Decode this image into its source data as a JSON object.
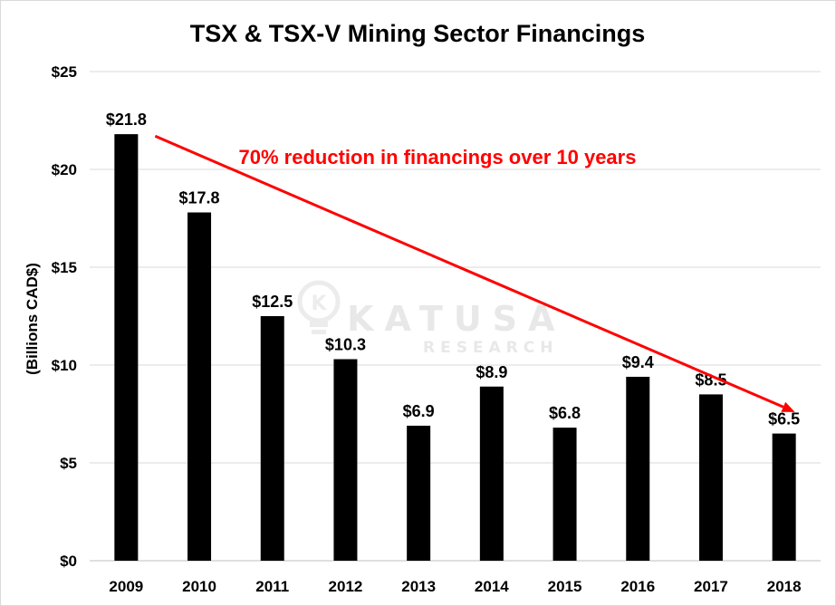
{
  "chart_data": {
    "type": "bar",
    "title": "TSX & TSX-V Mining Sector Financings",
    "xlabel": "",
    "ylabel": "(Billions CAD$)",
    "categories": [
      "2009",
      "2010",
      "2011",
      "2012",
      "2013",
      "2014",
      "2015",
      "2016",
      "2017",
      "2018"
    ],
    "values": [
      21.8,
      17.8,
      12.5,
      10.3,
      6.9,
      8.9,
      6.8,
      9.4,
      8.5,
      6.5
    ],
    "data_labels": [
      "$21.8",
      "$17.8",
      "$12.5",
      "$10.3",
      "$6.9",
      "$8.9",
      "$6.8",
      "$9.4",
      "$8.5",
      "$6.5"
    ],
    "ylim": [
      0,
      25
    ],
    "yticks": [
      0,
      5,
      10,
      15,
      20,
      25
    ],
    "ytick_labels": [
      "$0",
      "$5",
      "$10",
      "$15",
      "$20",
      "$25"
    ],
    "grid": true,
    "bar_color": "#000000",
    "annotation": {
      "text": "70% reduction in financings over 10 years",
      "color": "#ff0000",
      "arrow_from": {
        "category": "2009",
        "value": 21.7
      },
      "arrow_to": {
        "category": "2018",
        "value": 7.6
      }
    },
    "watermark": {
      "line1": "KATUSA",
      "line2": "RESEARCH",
      "color": "#e8e8e8"
    }
  }
}
